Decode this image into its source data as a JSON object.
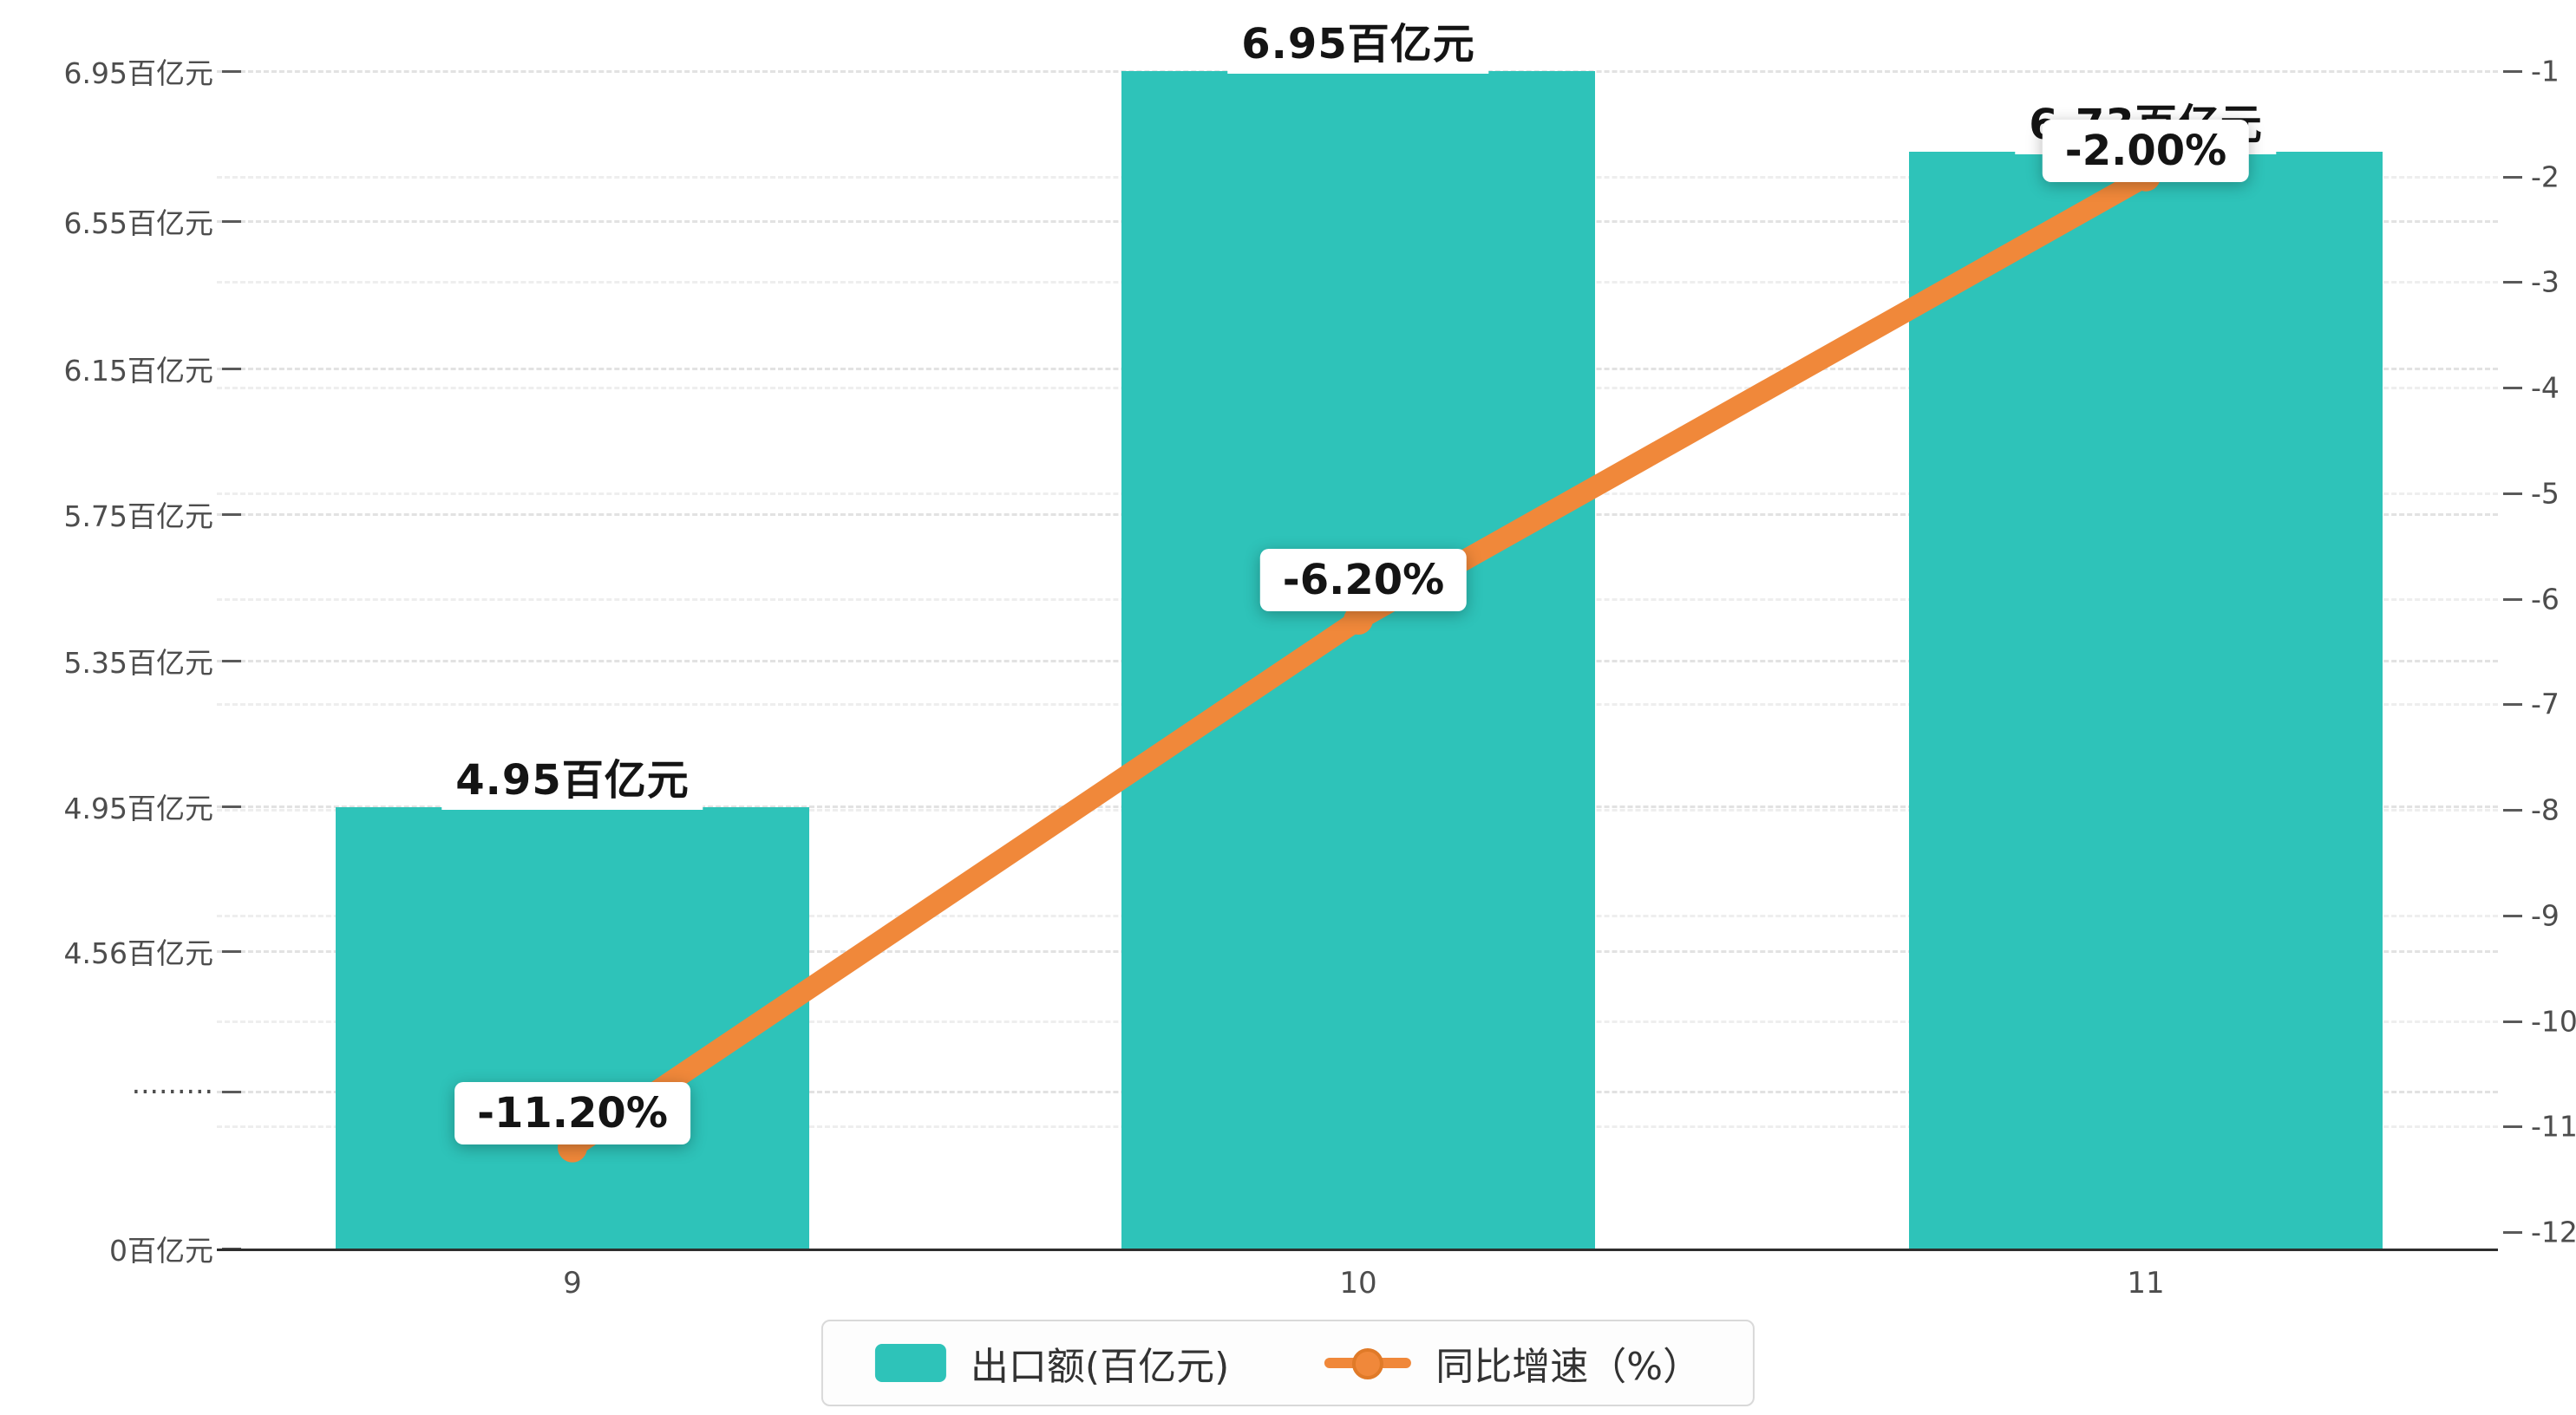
{
  "chart_data": {
    "type": "bar",
    "combo": "bar+line dual y-axis",
    "categories": [
      "9",
      "10",
      "11"
    ],
    "series": [
      {
        "name": "出口额(百亿元)",
        "type": "bar",
        "axis": "left",
        "color": "#2ec3b9",
        "values": [
          4.95,
          6.95,
          6.73
        ],
        "data_labels": [
          "4.95百亿元",
          "6.95百亿元",
          "6.73百亿元"
        ]
      },
      {
        "name": "同比增速（%）",
        "type": "line",
        "axis": "right",
        "color": "#f0883a",
        "values": [
          -11.2,
          -6.2,
          -2.0
        ],
        "data_labels": [
          "-11.20%",
          "-6.20%",
          "-2.00%"
        ]
      }
    ],
    "left_axis": {
      "unit": "百亿元",
      "axis_break": true,
      "ticks": [
        {
          "label": "6.95百亿元",
          "value": 6.95
        },
        {
          "label": "6.55百亿元",
          "value": 6.55
        },
        {
          "label": "6.15百亿元",
          "value": 6.15
        },
        {
          "label": "5.75百亿元",
          "value": 5.75
        },
        {
          "label": "5.35百亿元",
          "value": 5.35
        },
        {
          "label": "4.95百亿元",
          "value": 4.95
        },
        {
          "label": "4.56百亿元",
          "value": 4.56
        },
        {
          "label": "·········",
          "value": null
        },
        {
          "label": "0百亿元",
          "value": 0
        }
      ]
    },
    "right_axis": {
      "min": -12,
      "max": -1,
      "ticks": [
        "-1",
        "-2",
        "-3",
        "-4",
        "-5",
        "-6",
        "-7",
        "-8",
        "-9",
        "-10",
        "-11",
        "-12"
      ]
    },
    "legend": {
      "position": "bottom",
      "items": [
        {
          "label": "出口额(百亿元)",
          "marker": "bar-swatch",
          "color": "#2ec3b9"
        },
        {
          "label": "同比增速（%）",
          "marker": "line-dot",
          "color": "#f0883a"
        }
      ]
    },
    "grid": "dashed horizontal lines"
  },
  "colors": {
    "bar": "#2ec3b9",
    "line": "#f0883a",
    "axis_text": "#4d4d4d",
    "label_text": "#141414",
    "grid": "#e2e2e2",
    "background": "#ffffff"
  }
}
